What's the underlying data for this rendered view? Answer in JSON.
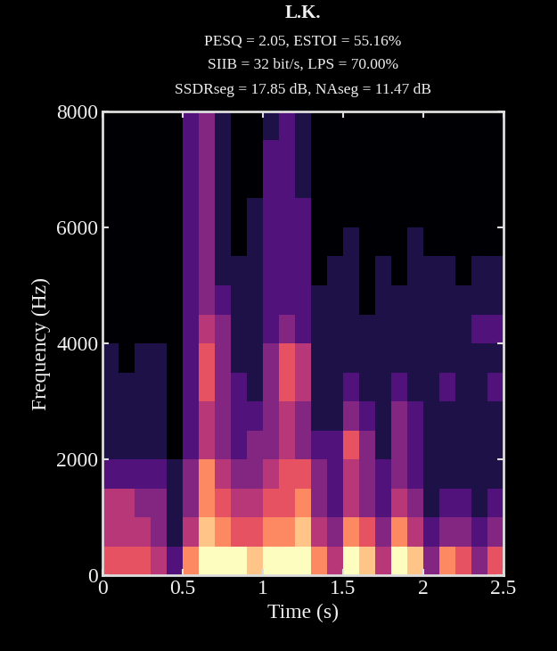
{
  "chart_data": {
    "type": "heatmap",
    "title": "L.K.",
    "subtitle": [
      "PESQ = 2.05, ESTOI = 55.16%",
      "SIIB = 32 bit/s, LPS = 70.00%",
      "SSDRseg = 17.85 dB, NAseg = 11.47 dB"
    ],
    "x_label": "Time (s)",
    "y_label": "Frequency (Hz)",
    "xlim": [
      0,
      2.5
    ],
    "ylim": [
      0,
      8000
    ],
    "xticks": [
      0,
      0.5,
      1,
      1.5,
      2,
      2.5
    ],
    "yticks": [
      0,
      2000,
      4000,
      6000,
      8000
    ],
    "color": "magma",
    "time_bins": [
      0,
      0.1,
      0.2,
      0.3,
      0.4,
      0.5,
      0.6,
      0.7,
      0.8,
      0.9,
      1.0,
      1.1,
      1.2,
      1.3,
      1.4,
      1.5,
      1.6,
      1.7,
      1.8,
      1.9,
      2.0,
      2.1,
      2.2,
      2.3,
      2.4,
      2.5
    ],
    "frequency_bins": [
      0,
      500,
      1000,
      1500,
      2000,
      2500,
      3000,
      3500,
      4000,
      4500,
      5000,
      5500,
      6000,
      6500,
      7000,
      7500,
      8000
    ],
    "cells": [
      [
        6,
        6,
        6,
        5,
        3,
        7,
        9,
        9,
        9,
        8,
        9,
        9,
        9,
        7,
        5,
        9,
        8,
        5,
        9,
        8,
        4,
        7,
        6,
        4,
        6
      ],
      [
        5,
        5,
        5,
        4,
        2,
        5,
        8,
        7,
        6,
        6,
        7,
        7,
        8,
        5,
        4,
        7,
        6,
        4,
        7,
        5,
        3,
        4,
        4,
        3,
        4
      ],
      [
        5,
        5,
        4,
        4,
        2,
        4,
        7,
        6,
        5,
        5,
        6,
        6,
        7,
        4,
        3,
        5,
        4,
        3,
        5,
        4,
        2,
        3,
        3,
        2,
        3
      ],
      [
        3,
        3,
        3,
        3,
        2,
        4,
        7,
        5,
        4,
        4,
        5,
        6,
        6,
        4,
        3,
        5,
        4,
        3,
        4,
        3,
        2,
        2,
        2,
        2,
        2
      ],
      [
        2,
        2,
        2,
        2,
        1,
        3,
        5,
        4,
        3,
        4,
        4,
        5,
        4,
        3,
        3,
        6,
        4,
        2,
        4,
        3,
        2,
        2,
        2,
        2,
        2
      ],
      [
        2,
        2,
        2,
        2,
        1,
        3,
        5,
        4,
        3,
        3,
        4,
        5,
        4,
        2,
        2,
        4,
        3,
        2,
        4,
        3,
        2,
        2,
        2,
        2,
        2
      ],
      [
        2,
        2,
        2,
        2,
        1,
        3,
        6,
        4,
        3,
        2,
        4,
        6,
        5,
        2,
        2,
        3,
        2,
        2,
        3,
        2,
        2,
        3,
        2,
        2,
        3
      ],
      [
        2,
        1,
        2,
        2,
        1,
        3,
        6,
        4,
        2,
        2,
        4,
        6,
        5,
        2,
        2,
        2,
        2,
        2,
        2,
        2,
        2,
        2,
        2,
        2,
        2
      ],
      [
        1,
        1,
        1,
        1,
        1,
        3,
        5,
        4,
        2,
        2,
        3,
        4,
        3,
        2,
        2,
        2,
        2,
        2,
        2,
        2,
        2,
        2,
        2,
        3,
        3
      ],
      [
        1,
        1,
        1,
        1,
        1,
        3,
        4,
        3,
        2,
        2,
        3,
        3,
        3,
        2,
        2,
        2,
        1,
        2,
        2,
        2,
        2,
        2,
        2,
        2,
        2
      ],
      [
        1,
        1,
        1,
        1,
        1,
        3,
        4,
        2,
        2,
        2,
        3,
        3,
        3,
        1,
        2,
        2,
        1,
        2,
        1,
        2,
        2,
        2,
        1,
        2,
        2
      ],
      [
        1,
        1,
        1,
        1,
        1,
        3,
        4,
        2,
        1,
        2,
        3,
        3,
        3,
        1,
        1,
        2,
        1,
        1,
        1,
        2,
        1,
        1,
        1,
        1,
        1
      ],
      [
        1,
        1,
        1,
        1,
        1,
        3,
        4,
        2,
        1,
        2,
        3,
        3,
        3,
        1,
        1,
        1,
        1,
        1,
        1,
        1,
        1,
        1,
        1,
        1,
        1
      ],
      [
        1,
        1,
        1,
        1,
        1,
        3,
        4,
        2,
        1,
        1,
        3,
        3,
        2,
        1,
        1,
        1,
        1,
        1,
        1,
        1,
        1,
        1,
        1,
        1,
        1
      ],
      [
        1,
        1,
        1,
        1,
        1,
        3,
        4,
        2,
        1,
        1,
        3,
        3,
        2,
        1,
        1,
        1,
        1,
        1,
        1,
        1,
        1,
        1,
        1,
        1,
        1
      ],
      [
        1,
        1,
        1,
        1,
        1,
        3,
        4,
        2,
        1,
        1,
        2,
        3,
        2,
        1,
        1,
        1,
        1,
        1,
        1,
        1,
        1,
        1,
        1,
        1,
        1
      ]
    ]
  }
}
